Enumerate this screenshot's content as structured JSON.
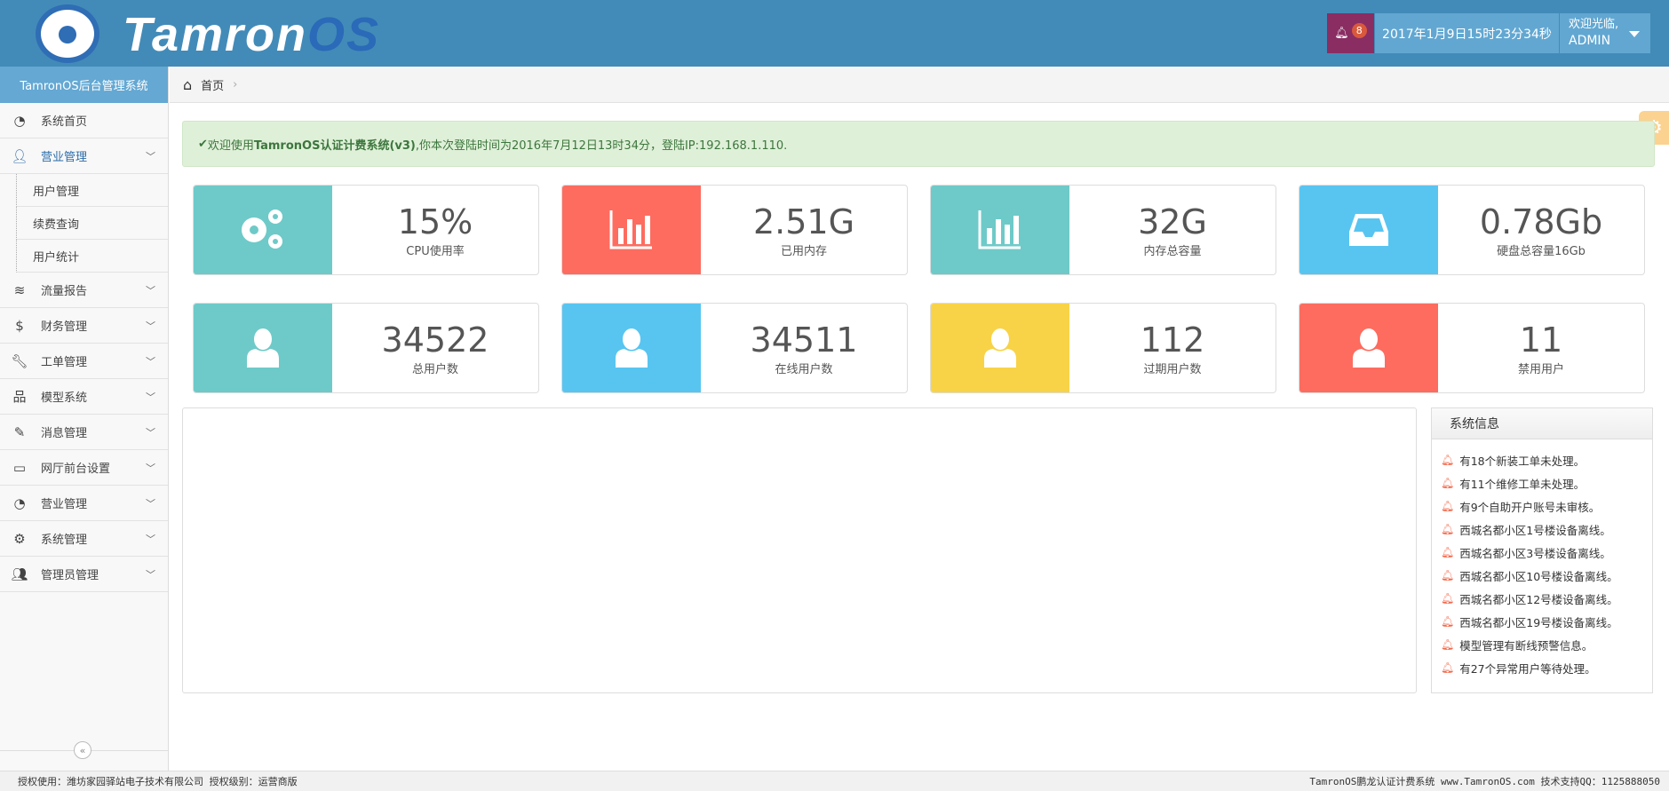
{
  "header": {
    "logo_text": "Tamron",
    "logo_text_accent": "OS",
    "notification_count": "8",
    "datetime": "2017年1月9日15时23分34秒",
    "welcome": "欢迎光临,",
    "username": "ADMIN"
  },
  "sidebar": {
    "title": "TamronOS后台管理系统",
    "items": [
      {
        "label": "系统首页",
        "icon": "dashboard-icon"
      },
      {
        "label": "营业管理",
        "icon": "user-icon",
        "expanded": true,
        "children": [
          "用户管理",
          "续费查询",
          "用户统计"
        ]
      },
      {
        "label": "流量报告",
        "icon": "rss-icon"
      },
      {
        "label": "财务管理",
        "icon": "dollar-icon"
      },
      {
        "label": "工单管理",
        "icon": "wrench-icon"
      },
      {
        "label": "模型系统",
        "icon": "sitemap-icon"
      },
      {
        "label": "消息管理",
        "icon": "edit-icon"
      },
      {
        "label": "网厅前台设置",
        "icon": "desktop-icon"
      },
      {
        "label": "营业管理",
        "icon": "dashboard-icon"
      },
      {
        "label": "系统管理",
        "icon": "cogs-icon"
      },
      {
        "label": "管理员管理",
        "icon": "users-icon"
      }
    ],
    "collapse_label": "«"
  },
  "breadcrumb": {
    "home": "首页"
  },
  "alert": {
    "prefix": "欢迎使用",
    "product": "TamronOS认证计费系统(v3)",
    "suffix": ",你本次登陆时间为2016年7月12日13时34分，登陆IP:192.168.1.110."
  },
  "stats": [
    {
      "value": "15%",
      "label": "CPU使用率",
      "color": "#6ecac8",
      "icon": "cogs-icon"
    },
    {
      "value": "2.51G",
      "label": "已用内存",
      "color": "#fe6c5f",
      "icon": "bar-chart-icon"
    },
    {
      "value": "32G",
      "label": "内存总容量",
      "color": "#6ecac8",
      "icon": "bar-chart-icon"
    },
    {
      "value": "0.78Gb",
      "label": "硬盘总容量16Gb",
      "color": "#58c5f1",
      "icon": "inbox-icon"
    },
    {
      "value": "34522",
      "label": "总用户数",
      "color": "#6ecac8",
      "icon": "user-icon"
    },
    {
      "value": "34511",
      "label": "在线用户数",
      "color": "#58c5f1",
      "icon": "user-icon"
    },
    {
      "value": "112",
      "label": "过期用户数",
      "color": "#f8d347",
      "icon": "user-icon"
    },
    {
      "value": "11",
      "label": "禁用用户",
      "color": "#fe6c5f",
      "icon": "user-icon"
    }
  ],
  "system_info": {
    "title": "系统信息",
    "items": [
      "有18个新装工单未处理。",
      "有11个维修工单未处理。",
      "有9个自助开户账号未审核。",
      "西城名都小区1号楼设备离线。",
      "西城名都小区3号楼设备离线。",
      "西城名都小区10号楼设备离线。",
      "西城名都小区12号楼设备离线。",
      "西城名都小区19号楼设备离线。",
      "模型管理有断线预警信息。",
      "有27个异常用户等待处理。"
    ]
  },
  "footer": {
    "left": "授权使用：潍坊家园驿站电子技术有限公司 授权级别：运营商版",
    "right": "TamronOS鹏龙认证计费系统 www.TamronOS.com 技术支持QQ：1125888050"
  }
}
